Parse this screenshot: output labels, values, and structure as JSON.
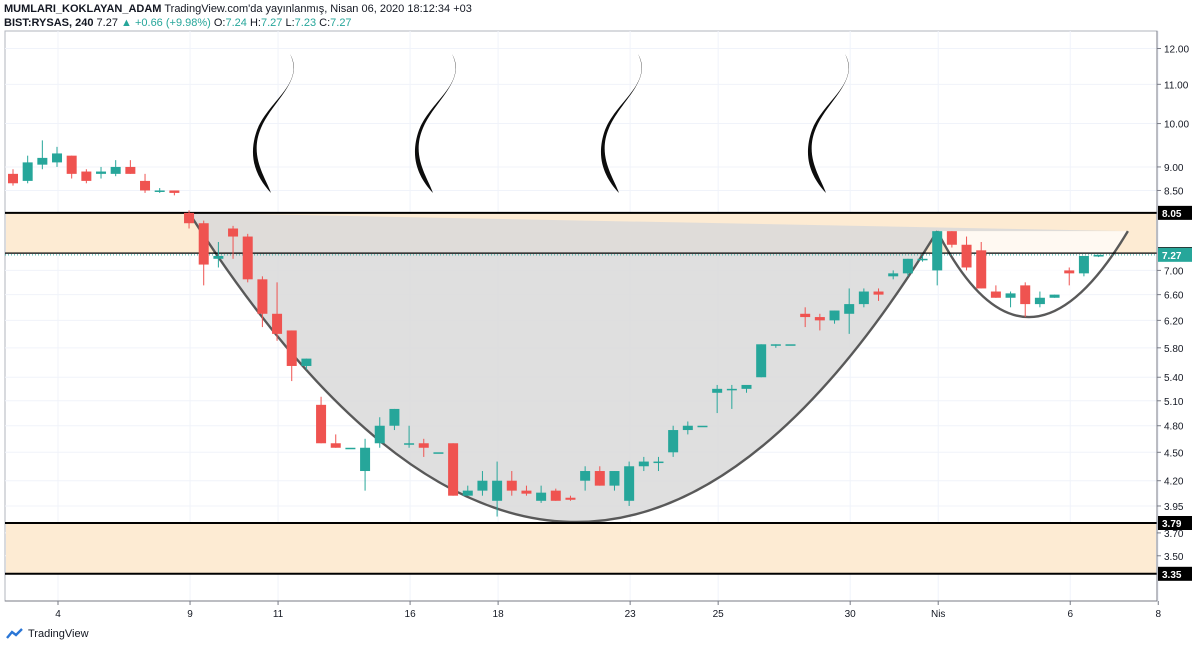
{
  "header": {
    "author": "MUMLARI_KOKLAYAN_ADAM",
    "published": "TradingView.com'da yayınlanmış, Nisan 06, 2020 18:12:34 +03",
    "symbol": "BIST:RYSAS, 240",
    "last": "7.27",
    "change": "+0.66 (+9.98%)",
    "o_label": "O:",
    "o_value": "7.24",
    "h_label": "H:",
    "h_value": "7.27",
    "l_label": "L:",
    "l_value": "7.23",
    "c_label": "C:",
    "c_value": "7.27"
  },
  "footer": {
    "brand": "TradingView"
  },
  "colors": {
    "up": "#26a69a",
    "down": "#ef5350",
    "level": "#000000",
    "band": "#fdebd3",
    "fill": "#d9d9d9",
    "last": "#26a69a"
  },
  "chart_data": {
    "type": "candlestick",
    "y_ticks": [
      "12.00",
      "11.00",
      "10.00",
      "9.00",
      "8.50",
      "7.00",
      "6.60",
      "6.20",
      "5.80",
      "5.40",
      "5.10",
      "4.80",
      "4.50",
      "4.20",
      "3.95",
      "3.70",
      "3.50"
    ],
    "y_scale": "log",
    "x_ticks": [
      {
        "label": "4",
        "i": 3
      },
      {
        "label": "9",
        "i": 12
      },
      {
        "label": "11",
        "i": 18
      },
      {
        "label": "16",
        "i": 27
      },
      {
        "label": "18",
        "i": 33
      },
      {
        "label": "23",
        "i": 42
      },
      {
        "label": "25",
        "i": 48
      },
      {
        "label": "30",
        "i": 57
      },
      {
        "label": "Nis",
        "i": 63
      },
      {
        "label": "6",
        "i": 72
      },
      {
        "label": "8",
        "i": 78
      }
    ],
    "levels": [
      {
        "value": 8.05,
        "label": "8.05"
      },
      {
        "value": 7.3,
        "label": "7.30"
      },
      {
        "value": 3.79,
        "label": "3.79"
      },
      {
        "value": 3.35,
        "label": "3.35"
      }
    ],
    "last_price": {
      "value": 7.27,
      "label": "7.27"
    },
    "candles": [
      {
        "i": 0,
        "o": 8.85,
        "h": 8.95,
        "l": 8.6,
        "c": 8.65
      },
      {
        "i": 1,
        "o": 8.7,
        "h": 9.25,
        "l": 8.65,
        "c": 9.1
      },
      {
        "i": 2,
        "o": 9.05,
        "h": 9.6,
        "l": 8.95,
        "c": 9.2
      },
      {
        "i": 3,
        "o": 9.1,
        "h": 9.45,
        "l": 9.0,
        "c": 9.3
      },
      {
        "i": 4,
        "o": 9.25,
        "h": 9.25,
        "l": 8.75,
        "c": 8.85
      },
      {
        "i": 5,
        "o": 8.9,
        "h": 8.95,
        "l": 8.65,
        "c": 8.7
      },
      {
        "i": 6,
        "o": 8.85,
        "h": 9.0,
        "l": 8.75,
        "c": 8.9
      },
      {
        "i": 7,
        "o": 8.85,
        "h": 9.15,
        "l": 8.8,
        "c": 9.0
      },
      {
        "i": 8,
        "o": 9.0,
        "h": 9.15,
        "l": 8.85,
        "c": 8.85
      },
      {
        "i": 9,
        "o": 8.7,
        "h": 8.85,
        "l": 8.45,
        "c": 8.5
      },
      {
        "i": 10,
        "o": 8.5,
        "h": 8.55,
        "l": 8.45,
        "c": 8.5
      },
      {
        "i": 11,
        "o": 8.5,
        "h": 8.5,
        "l": 8.4,
        "c": 8.45
      },
      {
        "i": 12,
        "o": 8.05,
        "h": 8.1,
        "l": 7.75,
        "c": 7.85
      },
      {
        "i": 13,
        "o": 7.85,
        "h": 7.9,
        "l": 6.75,
        "c": 7.1
      },
      {
        "i": 14,
        "o": 7.2,
        "h": 7.5,
        "l": 7.05,
        "c": 7.25
      },
      {
        "i": 15,
        "o": 7.75,
        "h": 7.8,
        "l": 7.2,
        "c": 7.6
      },
      {
        "i": 16,
        "o": 7.6,
        "h": 7.65,
        "l": 6.8,
        "c": 6.85
      },
      {
        "i": 17,
        "o": 6.85,
        "h": 6.9,
        "l": 6.1,
        "c": 6.3
      },
      {
        "i": 18,
        "o": 6.3,
        "h": 6.8,
        "l": 5.9,
        "c": 6.0
      },
      {
        "i": 19,
        "o": 6.05,
        "h": 6.05,
        "l": 5.35,
        "c": 5.55
      },
      {
        "i": 20,
        "o": 5.55,
        "h": 5.65,
        "l": 5.5,
        "c": 5.65
      },
      {
        "i": 21,
        "o": 5.05,
        "h": 5.15,
        "l": 4.6,
        "c": 4.6
      },
      {
        "i": 22,
        "o": 4.6,
        "h": 4.7,
        "l": 4.55,
        "c": 4.55
      },
      {
        "i": 23,
        "o": 4.55,
        "h": 4.55,
        "l": 4.55,
        "c": 4.55
      },
      {
        "i": 24,
        "o": 4.3,
        "h": 4.65,
        "l": 4.1,
        "c": 4.55
      },
      {
        "i": 25,
        "o": 4.6,
        "h": 4.9,
        "l": 4.55,
        "c": 4.8
      },
      {
        "i": 26,
        "o": 4.8,
        "h": 5.0,
        "l": 4.75,
        "c": 5.0
      },
      {
        "i": 27,
        "o": 4.6,
        "h": 4.8,
        "l": 4.55,
        "c": 4.6
      },
      {
        "i": 28,
        "o": 4.6,
        "h": 4.65,
        "l": 4.45,
        "c": 4.55
      },
      {
        "i": 29,
        "o": 4.5,
        "h": 4.5,
        "l": 4.5,
        "c": 4.5
      },
      {
        "i": 30,
        "o": 4.6,
        "h": 4.6,
        "l": 4.05,
        "c": 4.05
      },
      {
        "i": 31,
        "o": 4.05,
        "h": 4.15,
        "l": 4.05,
        "c": 4.1
      },
      {
        "i": 32,
        "o": 4.1,
        "h": 4.3,
        "l": 4.05,
        "c": 4.2
      },
      {
        "i": 33,
        "o": 4.0,
        "h": 4.4,
        "l": 3.85,
        "c": 4.2
      },
      {
        "i": 34,
        "o": 4.2,
        "h": 4.3,
        "l": 4.05,
        "c": 4.1
      },
      {
        "i": 35,
        "o": 4.1,
        "h": 4.15,
        "l": 4.05,
        "c": 4.07
      },
      {
        "i": 36,
        "o": 4.0,
        "h": 4.15,
        "l": 3.98,
        "c": 4.08
      },
      {
        "i": 37,
        "o": 4.1,
        "h": 4.12,
        "l": 4.0,
        "c": 4.0
      },
      {
        "i": 38,
        "o": 4.03,
        "h": 4.05,
        "l": 4.0,
        "c": 4.01
      },
      {
        "i": 39,
        "o": 4.2,
        "h": 4.35,
        "l": 4.1,
        "c": 4.3
      },
      {
        "i": 40,
        "o": 4.3,
        "h": 4.35,
        "l": 4.15,
        "c": 4.15
      },
      {
        "i": 41,
        "o": 4.15,
        "h": 4.3,
        "l": 4.1,
        "c": 4.3
      },
      {
        "i": 42,
        "o": 4.0,
        "h": 4.4,
        "l": 3.95,
        "c": 4.35
      },
      {
        "i": 43,
        "o": 4.35,
        "h": 4.45,
        "l": 4.3,
        "c": 4.4
      },
      {
        "i": 44,
        "o": 4.4,
        "h": 4.45,
        "l": 4.3,
        "c": 4.4
      },
      {
        "i": 45,
        "o": 4.5,
        "h": 4.8,
        "l": 4.45,
        "c": 4.75
      },
      {
        "i": 46,
        "o": 4.75,
        "h": 4.85,
        "l": 4.7,
        "c": 4.8
      },
      {
        "i": 47,
        "o": 4.8,
        "h": 4.8,
        "l": 4.8,
        "c": 4.8
      },
      {
        "i": 48,
        "o": 5.2,
        "h": 5.3,
        "l": 4.95,
        "c": 5.25
      },
      {
        "i": 49,
        "o": 5.25,
        "h": 5.3,
        "l": 5.0,
        "c": 5.25
      },
      {
        "i": 50,
        "o": 5.25,
        "h": 5.3,
        "l": 5.2,
        "c": 5.3
      },
      {
        "i": 51,
        "o": 5.4,
        "h": 5.85,
        "l": 5.4,
        "c": 5.85
      },
      {
        "i": 52,
        "o": 5.85,
        "h": 5.85,
        "l": 5.8,
        "c": 5.85
      },
      {
        "i": 53,
        "o": 5.85,
        "h": 5.85,
        "l": 5.85,
        "c": 5.85
      },
      {
        "i": 54,
        "o": 6.3,
        "h": 6.4,
        "l": 6.1,
        "c": 6.25
      },
      {
        "i": 55,
        "o": 6.25,
        "h": 6.3,
        "l": 6.05,
        "c": 6.2
      },
      {
        "i": 56,
        "o": 6.2,
        "h": 6.35,
        "l": 6.15,
        "c": 6.35
      },
      {
        "i": 57,
        "o": 6.3,
        "h": 6.7,
        "l": 6.0,
        "c": 6.45
      },
      {
        "i": 58,
        "o": 6.45,
        "h": 6.7,
        "l": 6.4,
        "c": 6.65
      },
      {
        "i": 59,
        "o": 6.65,
        "h": 6.7,
        "l": 6.5,
        "c": 6.6
      },
      {
        "i": 60,
        "o": 6.9,
        "h": 7.0,
        "l": 6.85,
        "c": 6.95
      },
      {
        "i": 61,
        "o": 6.95,
        "h": 7.2,
        "l": 6.9,
        "c": 7.2
      },
      {
        "i": 62,
        "o": 7.2,
        "h": 7.25,
        "l": 7.15,
        "c": 7.2
      },
      {
        "i": 63,
        "o": 7.0,
        "h": 7.7,
        "l": 6.75,
        "c": 7.7
      },
      {
        "i": 64,
        "o": 7.7,
        "h": 7.7,
        "l": 7.4,
        "c": 7.45
      },
      {
        "i": 65,
        "o": 7.45,
        "h": 7.6,
        "l": 7.0,
        "c": 7.05
      },
      {
        "i": 66,
        "o": 7.35,
        "h": 7.5,
        "l": 6.7,
        "c": 6.7
      },
      {
        "i": 67,
        "o": 6.65,
        "h": 6.75,
        "l": 6.55,
        "c": 6.55
      },
      {
        "i": 68,
        "o": 6.55,
        "h": 6.65,
        "l": 6.4,
        "c": 6.62
      },
      {
        "i": 69,
        "o": 6.75,
        "h": 6.8,
        "l": 6.25,
        "c": 6.45
      },
      {
        "i": 70,
        "o": 6.45,
        "h": 6.65,
        "l": 6.4,
        "c": 6.55
      },
      {
        "i": 71,
        "o": 6.55,
        "h": 6.6,
        "l": 6.55,
        "c": 6.6
      },
      {
        "i": 72,
        "o": 7.0,
        "h": 7.05,
        "l": 6.75,
        "c": 6.95
      },
      {
        "i": 73,
        "o": 6.95,
        "h": 7.25,
        "l": 6.9,
        "c": 7.25
      },
      {
        "i": 74,
        "o": 7.24,
        "h": 7.27,
        "l": 7.23,
        "c": 7.27
      }
    ]
  }
}
